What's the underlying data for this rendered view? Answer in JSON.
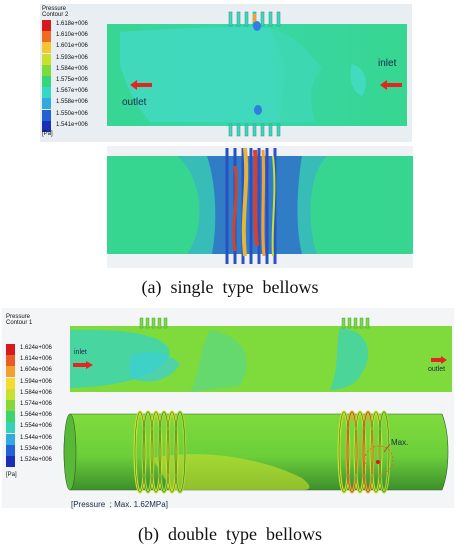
{
  "panel_a": {
    "legend": {
      "title": "Pressure\nContour 2",
      "values": [
        "1.618e+006",
        "1.610e+006",
        "1.601e+006",
        "1.593e+006",
        "1.584e+006",
        "1.575e+006",
        "1.567e+006",
        "1.558e+006",
        "1.550e+006",
        "1.541e+006"
      ],
      "colors": [
        "#d7191c",
        "#f06a25",
        "#f7c531",
        "#c8e02e",
        "#7fdb3c",
        "#35d67a",
        "#36d7c6",
        "#33a9e2",
        "#2361d3",
        "#1a2fb5"
      ],
      "unit": "[Pa]"
    },
    "inlet_label": "inlet",
    "outlet_label": "outlet",
    "caption": "(a)  single  type  bellows"
  },
  "panel_b": {
    "legend": {
      "title": "Pressure\nContour 1",
      "values": [
        "1.624e+006",
        "1.614e+006",
        "1.604e+006",
        "1.594e+006",
        "1.584e+006",
        "1.574e+006",
        "1.564e+006",
        "1.554e+006",
        "1.544e+006",
        "1.534e+006",
        "1.524e+006"
      ],
      "colors": [
        "#d7191c",
        "#ec5a25",
        "#f3a12e",
        "#f4dd2f",
        "#c8e02e",
        "#83d83a",
        "#3fd36b",
        "#34d2b6",
        "#33a9e2",
        "#2461d4",
        "#1a2fb5"
      ],
      "unit": "[Pa]"
    },
    "inlet_label": "inlet",
    "outlet_label": "outlet",
    "max_label": "Max.",
    "annotation": "[Pressure  ; Max. 1.62MPa]",
    "caption": "(b)  double  type  bellows"
  }
}
